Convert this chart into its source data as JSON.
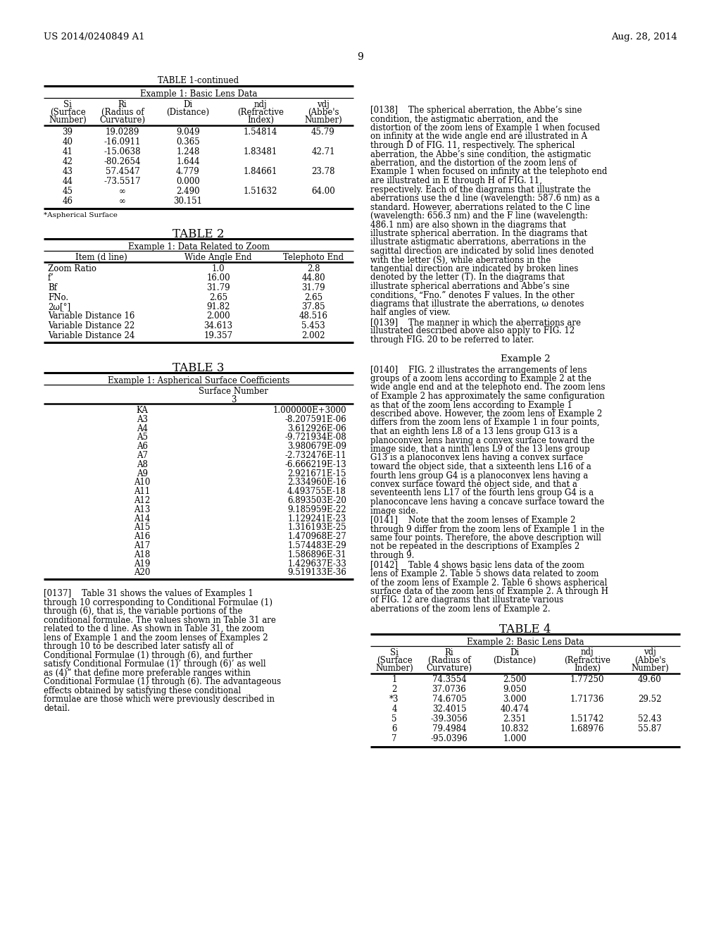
{
  "page_header_left": "US 2014/0240849 A1",
  "page_header_right": "Aug. 28, 2014",
  "page_number": "9",
  "table1_title": "TABLE 1-continued",
  "table1_subtitle": "Example 1: Basic Lens Data",
  "table1_col_headers": [
    "Si\n(Surface\nNumber)",
    "Ri\n(Radius of\nCurvature)",
    "Di\n(Distance)",
    "ndj\n(Refractive\nIndex)",
    "vdj\n(Abbe's\nNumber)"
  ],
  "table1_data": [
    [
      "39",
      "19.0289",
      "9.049",
      "1.54814",
      "45.79"
    ],
    [
      "40",
      "-16.0911",
      "0.365",
      "",
      ""
    ],
    [
      "41",
      "-15.0638",
      "1.248",
      "1.83481",
      "42.71"
    ],
    [
      "42",
      "-80.2654",
      "1.644",
      "",
      ""
    ],
    [
      "43",
      "57.4547",
      "4.779",
      "1.84661",
      "23.78"
    ],
    [
      "44",
      "-73.5517",
      "0.000",
      "",
      ""
    ],
    [
      "45",
      "∞",
      "2.490",
      "1.51632",
      "64.00"
    ],
    [
      "46",
      "∞",
      "30.151",
      "",
      ""
    ]
  ],
  "table1_footnote": "*Aspherical Surface",
  "table2_title": "TABLE 2",
  "table2_subtitle": "Example 1: Data Related to Zoom",
  "table2_col_headers": [
    "Item (d line)",
    "Wide Angle End",
    "Telephoto End"
  ],
  "table2_data": [
    [
      "Zoom Ratio",
      "1.0",
      "2.8"
    ],
    [
      "f’",
      "16.00",
      "44.80"
    ],
    [
      "Bf",
      "31.79",
      "31.79"
    ],
    [
      "FNo.",
      "2.65",
      "2.65"
    ],
    [
      "2ω[°]",
      "91.82",
      "37.85"
    ],
    [
      "Variable Distance 16",
      "2.000",
      "48.516"
    ],
    [
      "Variable Distance 22",
      "34.613",
      "5.453"
    ],
    [
      "Variable Distance 24",
      "19.357",
      "2.002"
    ]
  ],
  "table3_title": "TABLE 3",
  "table3_subtitle": "Example 1: Aspherical Surface Coefficients",
  "table3_data": [
    [
      "KA",
      "1.000000E+3000"
    ],
    [
      "A3",
      "-8.207591E-06"
    ],
    [
      "A4",
      "3.612926E-06"
    ],
    [
      "A5",
      "-9.721934E-08"
    ],
    [
      "A6",
      "3.980679E-09"
    ],
    [
      "A7",
      "-2.732476E-11"
    ],
    [
      "A8",
      "-6.666219E-13"
    ],
    [
      "A9",
      "2.921671E-15"
    ],
    [
      "A10",
      "2.334960E-16"
    ],
    [
      "A11",
      "4.493755E-18"
    ],
    [
      "A12",
      "6.893503E-20"
    ],
    [
      "A13",
      "9.185959E-22"
    ],
    [
      "A14",
      "1.129241E-23"
    ],
    [
      "A15",
      "1.316193E-25"
    ],
    [
      "A16",
      "1.470968E-27"
    ],
    [
      "A17",
      "1.574483E-29"
    ],
    [
      "A18",
      "1.586896E-31"
    ],
    [
      "A19",
      "1.429637E-33"
    ],
    [
      "A20",
      "9.519133E-36"
    ]
  ],
  "para137_label": "[0137]",
  "para137_text": "Table 31 shows the values of Examples 1 through 10 corresponding to Conditional Formulae (1) through (6), that is, the variable portions of the conditional formulae. The values shown in Table 31 are related to the d line. As shown in Table 31, the zoom lens of Example 1 and the zoom lenses of Examples 2 through 10 to be described later satisfy all of Conditional Formulae (1) through (6), and further satisfy Conditional Formulae (1)’ through (6)’ as well as (4)” that define more preferable ranges within Conditional Formulae (1) through (6). The advantageous effects obtained by satisfying these conditional formulae are those which were previously described in detail.",
  "para138_label": "[0138]",
  "para138_text": "The spherical aberration, the Abbe’s sine condition, the astigmatic aberration, and the distortion of the zoom lens of Example 1 when focused on infinity at the wide angle end are illustrated in A through D of FIG. 11, respectively. The spherical aberration, the Abbe’s sine condition, the astigmatic aberration, and the distortion of the zoom lens of Example 1 when focused on infinity at the telephoto end are illustrated in E through H of FIG. 11, respectively. Each of the diagrams that illustrate the aberrations use the d line (wavelength: 587.6 nm) as a standard. However, aberrations related to the C line (wavelength: 656.3 nm) and the F line (wavelength: 486.1 nm) are also shown in the diagrams that illustrate spherical aberration. In the diagrams that illustrate astigmatic aberrations, aberrations in the sagittal direction are indicated by solid lines denoted with the letter (S), while aberrations in the tangential direction are indicated by broken lines denoted by the letter (T). In the diagrams that illustrate spherical aberrations and Abbe’s sine conditions, “Fno.” denotes F values. In the other diagrams that illustrate the aberrations, ω denotes half angles of view.",
  "para139_label": "[0139]",
  "para139_text": "The manner in which the aberrations are illustrated described above also apply to FIG. 12 through FIG. 20 to be referred to later.",
  "example2_header": "Example 2",
  "para140_label": "[0140]",
  "para140_text": "FIG. 2 illustrates the arrangements of lens groups of a zoom lens according to Example 2 at the wide angle end and at the telephoto end. The zoom lens of Example 2 has approximately the same configuration as that of the zoom lens according to Example 1 described above. However, the zoom lens of Example 2 differs from the zoom lens of Example 1 in four points, that an eighth lens L8 of a 13 lens group G13 is a planoconvex lens having a convex surface toward the image side, that a ninth lens L9 of the 13 lens group G13 is a planoconvex lens having a convex surface toward the object side, that a sixteenth lens L16 of a fourth lens group G4 is a planoconvex lens having a convex surface toward the object side, and that a seventeenth lens L17 of the fourth lens group G4 is a planoconcave lens having a concave surface toward the image side.",
  "para141_label": "[0141]",
  "para141_text": "Note that the zoom lenses of Example 2 through 9 differ from the zoom lens of Example 1 in the same four points. Therefore, the above description will not be repeated in the descriptions of Examples 2 through 9.",
  "para142_label": "[0142]",
  "para142_text": "Table 4 shows basic lens data of the zoom lens of Example 2. Table 5 shows data related to zoom of the zoom lens of Example 2. Table 6 shows aspherical surface data of the zoom lens of Example 2. A through H of FIG. 12 are diagrams that illustrate various aberrations of the zoom lens of Example 2.",
  "table4_title": "TABLE 4",
  "table4_subtitle": "Example 2: Basic Lens Data",
  "table4_col_headers": [
    "Si\n(Surface\nNumber)",
    "Ri\n(Radius of\nCurvature)",
    "Di\n(Distance)",
    "ndj\n(Refractive\nIndex)",
    "vdj\n(Abbe's\nNumber)"
  ],
  "table4_data": [
    [
      "1",
      "74.3554",
      "2.500",
      "1.77250",
      "49.60"
    ],
    [
      "2",
      "37.0736",
      "9.050",
      "",
      ""
    ],
    [
      "*3",
      "74.6705",
      "3.000",
      "1.71736",
      "29.52"
    ],
    [
      "4",
      "32.4015",
      "40.474",
      "",
      ""
    ],
    [
      "5",
      "-39.3056",
      "2.351",
      "1.51742",
      "52.43"
    ],
    [
      "6",
      "79.4984",
      "10.832",
      "1.68976",
      "55.87"
    ],
    [
      "7",
      "-95.0396",
      "1.000",
      "",
      ""
    ]
  ]
}
